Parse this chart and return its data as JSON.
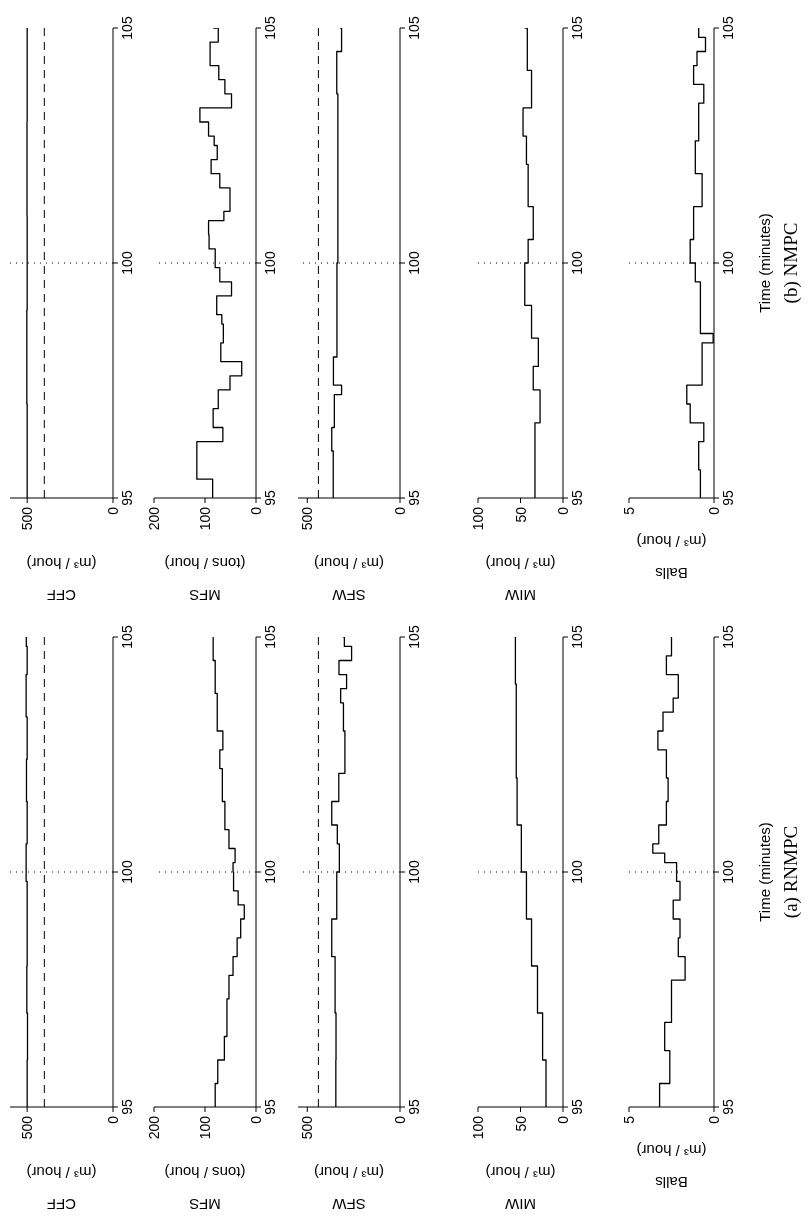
{
  "chart_data": [
    {
      "type": "step",
      "xlabel": "CFF\n(m³ / hour)",
      "xlim": [
        600,
        0
      ],
      "xticks": [
        0,
        500
      ],
      "ylim": [
        95,
        105
      ],
      "yticks": [
        95,
        100,
        105
      ],
      "ref_lines": [
        {
          "axis": "y",
          "value": 100,
          "line_style": "dotted"
        },
        {
          "axis": "x",
          "value": 400,
          "line_style": "dashed"
        }
      ],
      "series": [
        {
          "color": "#000000",
          "values": [
            95,
            96,
            97,
            98,
            99,
            99.8,
            100.6,
            101.5,
            102.4,
            103.3,
            104.2,
            104.8,
            105
          ],
          "x": [
            500,
            498,
            502,
            500,
            500,
            506,
            500,
            504,
            500,
            506,
            500,
            505,
            500
          ]
        }
      ]
    },
    {
      "type": "step",
      "xlabel": "MFS\n(tons / hour)",
      "xlim": [
        200,
        0
      ],
      "xticks": [
        0,
        100,
        200
      ],
      "ylim": [
        95,
        105
      ],
      "yticks": [
        95,
        100,
        105
      ],
      "ref_lines": [
        {
          "axis": "y",
          "value": 100,
          "line_style": "dotted"
        }
      ],
      "series": [
        {
          "color": "#000000",
          "values": [
            95,
            95.5,
            96,
            96.5,
            97.3,
            97.8,
            98.2,
            98.6,
            99,
            99.3,
            99.6,
            100,
            100.2,
            100.5,
            100.9,
            101.5,
            102.2,
            102.6,
            103,
            103.8,
            104.5,
            105
          ],
          "x": [
            80,
            75,
            62,
            57,
            53,
            45,
            37,
            30,
            23,
            35,
            44,
            45,
            41,
            53,
            61,
            66,
            71,
            65,
            76,
            80,
            84,
            84
          ]
        }
      ]
    },
    {
      "type": "step",
      "xlabel": "SFW\n(m³ / hour)",
      "xlim": [
        550,
        0
      ],
      "xticks": [
        0,
        500
      ],
      "ylim": [
        95,
        105
      ],
      "yticks": [
        95,
        100,
        105
      ],
      "ref_lines": [
        {
          "axis": "y",
          "value": 100,
          "line_style": "dotted"
        },
        {
          "axis": "x",
          "value": 440,
          "line_style": "dashed"
        }
      ],
      "series": [
        {
          "color": "#000000",
          "values": [
            95,
            96,
            97,
            98.2,
            99,
            100,
            100.6,
            101,
            101.5,
            102.1,
            103,
            103.6,
            103.9,
            104.2,
            104.5,
            104.8,
            105
          ],
          "x": [
            346,
            345,
            350,
            368,
            341,
            327,
            338,
            368,
            330,
            297,
            305,
            320,
            288,
            329,
            261,
            300,
            306
          ]
        }
      ]
    },
    {
      "type": "step",
      "xlabel": "MIW\n(m³ / hour)",
      "xlim": [
        100,
        0
      ],
      "xticks": [
        0,
        50,
        100
      ],
      "ylim": [
        95,
        105
      ],
      "yticks": [
        95,
        100,
        105
      ],
      "ref_lines": [
        {
          "axis": "y",
          "value": 100,
          "line_style": "dotted"
        }
      ],
      "series": [
        {
          "color": "#000000",
          "values": [
            95,
            96,
            97,
            98,
            99,
            100,
            101,
            102,
            103,
            104,
            105
          ],
          "x": [
            20,
            24,
            30,
            37,
            43,
            49,
            54,
            55,
            55,
            56,
            56
          ]
        }
      ]
    },
    {
      "type": "step",
      "xlabel": "Balls\n(m³ / hour)",
      "ylabel": "Time (minutes)",
      "annotations": [
        "(a) RNMPC"
      ],
      "xlim": [
        5,
        0
      ],
      "xticks": [
        0,
        5
      ],
      "ylim": [
        95,
        105
      ],
      "yticks": [
        95,
        100,
        105
      ],
      "ref_lines": [
        {
          "axis": "y",
          "value": 100,
          "line_style": "dotted"
        }
      ],
      "series": [
        {
          "color": "#000000",
          "values": [
            95,
            95.5,
            96.2,
            96.8,
            97.7,
            98.2,
            98.6,
            99,
            99.4,
            99.8,
            100.2,
            100.4,
            100.6,
            101,
            101.5,
            102,
            102.6,
            103,
            103.4,
            103.7,
            104.2,
            104.6,
            105
          ],
          "x": [
            3.2,
            2.6,
            2.9,
            2.5,
            1.7,
            2.1,
            2.0,
            2.4,
            2.0,
            2.2,
            2.9,
            3.6,
            3.25,
            2.8,
            2.7,
            2.8,
            3.3,
            3.0,
            2.4,
            2.1,
            2.8,
            2.5,
            2.5
          ]
        }
      ]
    },
    {
      "type": "step",
      "xlabel": "CFF\n(m³ / hour)",
      "xlim": [
        600,
        0
      ],
      "xticks": [
        0,
        500
      ],
      "ylim": [
        95,
        105
      ],
      "yticks": [
        95,
        100,
        105
      ],
      "ref_lines": [
        {
          "axis": "y",
          "value": 100,
          "line_style": "dotted"
        },
        {
          "axis": "x",
          "value": 400,
          "line_style": "dashed"
        }
      ],
      "series": [
        {
          "color": "#000000",
          "values": [
            95,
            97,
            99,
            101,
            103,
            105
          ],
          "x": [
            500,
            502,
            500,
            501,
            500,
            500
          ]
        }
      ]
    },
    {
      "type": "step",
      "xlabel": "MFS\n(tons / hour)",
      "xlim": [
        200,
        0
      ],
      "xticks": [
        0,
        100,
        200
      ],
      "ylim": [
        95,
        105
      ],
      "yticks": [
        95,
        100,
        105
      ],
      "ref_lines": [
        {
          "axis": "y",
          "value": 100,
          "line_style": "dotted"
        }
      ],
      "series": [
        {
          "color": "#000000",
          "values": [
            95,
            95.4,
            95.9,
            96.2,
            96.5,
            96.9,
            97.3,
            97.6,
            97.9,
            98.3,
            98.7,
            98.9,
            99.3,
            99.6,
            99.9,
            100.3,
            100.6,
            100.9,
            101.1,
            101.6,
            101.9,
            102.2,
            102.5,
            102.7,
            103,
            103.3,
            103.6,
            103.9,
            104.2,
            104.7,
            105
          ],
          "x": [
            85,
            116,
            116,
            65,
            84,
            74,
            51,
            28,
            69,
            64,
            67,
            77,
            48,
            71,
            80,
            92,
            93,
            63,
            51,
            71,
            88,
            76,
            82,
            93,
            110,
            48,
            61,
            73,
            90,
            74,
            84
          ]
        }
      ]
    },
    {
      "type": "step",
      "xlabel": "SFW\n(m³ / hour)",
      "xlim": [
        550,
        0
      ],
      "xticks": [
        0,
        500
      ],
      "ylim": [
        95,
        105
      ],
      "yticks": [
        95,
        100,
        105
      ],
      "ref_lines": [
        {
          "axis": "y",
          "value": 100,
          "line_style": "dotted"
        },
        {
          "axis": "x",
          "value": 440,
          "line_style": "dashed"
        }
      ],
      "series": [
        {
          "color": "#000000",
          "values": [
            95,
            96,
            96.5,
            97.2,
            97.4,
            98,
            100,
            102,
            103.6,
            104.5,
            105
          ],
          "x": [
            360,
            368,
            354,
            315,
            359,
            340,
            335,
            335,
            341,
            315,
            323
          ]
        }
      ]
    },
    {
      "type": "step",
      "xlabel": "MIW\n(m³ / hour)",
      "xlim": [
        100,
        0
      ],
      "xticks": [
        0,
        50,
        100
      ],
      "ylim": [
        95,
        105
      ],
      "yticks": [
        95,
        100,
        105
      ],
      "ref_lines": [
        {
          "axis": "y",
          "value": 100,
          "line_style": "dotted"
        }
      ],
      "series": [
        {
          "color": "#000000",
          "values": [
            95,
            95.9,
            96.6,
            97.3,
            97.8,
            98.4,
            99.1,
            100,
            100.5,
            101.2,
            102.1,
            102.7,
            103.3,
            104.1,
            105
          ],
          "x": [
            33,
            33,
            27,
            35,
            29,
            37,
            45,
            41,
            35,
            41,
            43,
            47,
            37,
            42,
            45
          ]
        }
      ]
    },
    {
      "type": "step",
      "xlabel": "Balls\n(m³ / hour)",
      "ylabel": "Time (minutes)",
      "annotations": [
        "(b) NMPC"
      ],
      "xlim": [
        5,
        0
      ],
      "xticks": [
        0,
        5
      ],
      "ylim": [
        95,
        105
      ],
      "yticks": [
        95,
        100,
        105
      ],
      "ref_lines": [
        {
          "axis": "y",
          "value": 100,
          "line_style": "dotted"
        }
      ],
      "series": [
        {
          "color": "#000000",
          "values": [
            95,
            95.6,
            96.2,
            96.6,
            97,
            97.4,
            97.8,
            98.3,
            98.5,
            99,
            99.6,
            100,
            100.5,
            101.2,
            101.9,
            102.6,
            103.4,
            103.8,
            104.2,
            104.5,
            104.8,
            105
          ],
          "x": [
            0.8,
            0.9,
            0.6,
            1.4,
            1.6,
            0.7,
            0.7,
            0.05,
            0.8,
            0.8,
            1.1,
            1.4,
            1.2,
            0.7,
            1.1,
            0.9,
            0.6,
            1.2,
            1.0,
            0.5,
            0.9,
            0.9
          ]
        }
      ]
    }
  ]
}
